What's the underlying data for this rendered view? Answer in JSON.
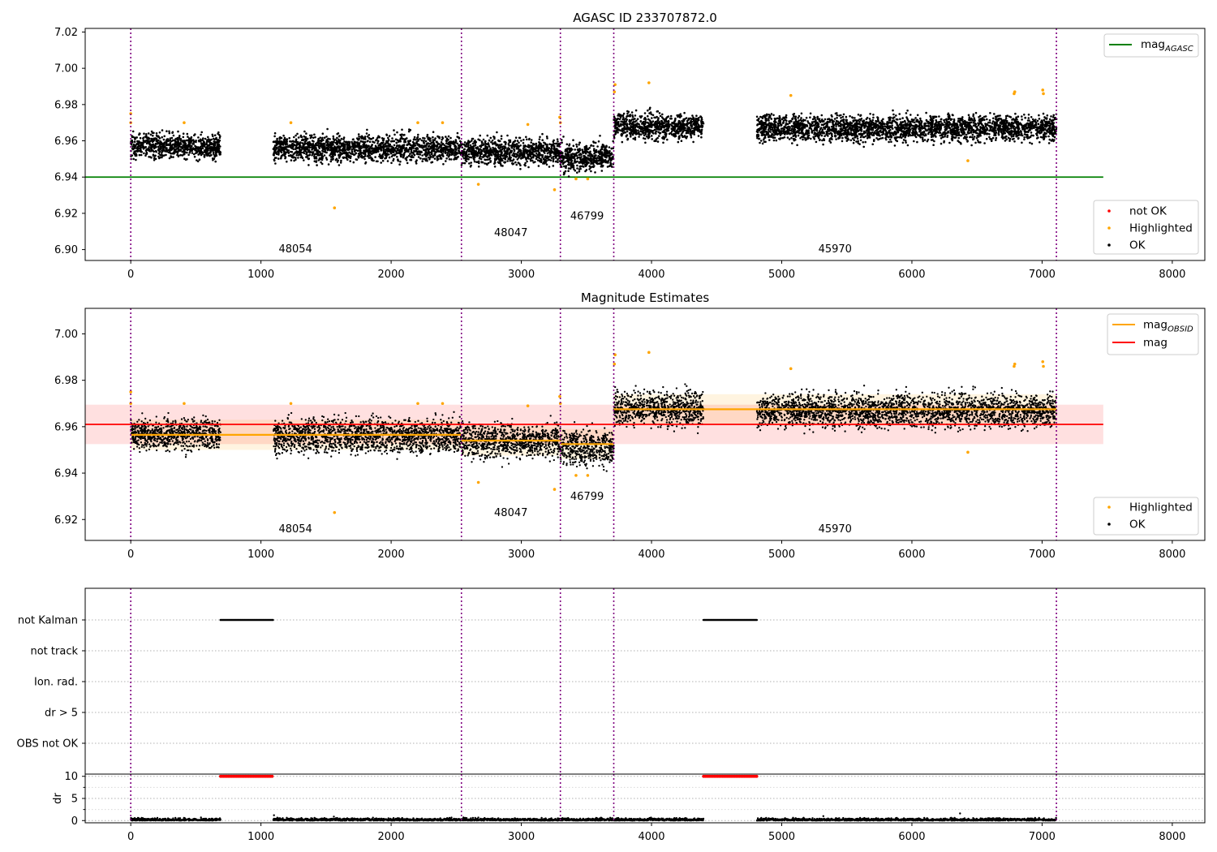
{
  "chart_data": [
    {
      "type": "scatter",
      "title": "AGASC ID 233707872.0",
      "xlim": [
        -350,
        8250
      ],
      "ylim": [
        6.894,
        7.022
      ],
      "xticks": [
        0,
        1000,
        2000,
        3000,
        4000,
        5000,
        6000,
        7000,
        8000
      ],
      "yticks": [
        6.9,
        6.92,
        6.94,
        6.96,
        6.98,
        7.0,
        7.02
      ],
      "ytick_labels": [
        "6.90",
        "6.92",
        "6.94",
        "6.96",
        "6.98",
        "7.00",
        "7.02"
      ],
      "legend_lines": [
        {
          "label": "mag",
          "subscript": "AGASC",
          "color": "#008000"
        }
      ],
      "legend_points": [
        {
          "label": "not OK",
          "color": "#ff0000"
        },
        {
          "label": "Highlighted",
          "color": "#ffa500"
        },
        {
          "label": "OK",
          "color": "#000000"
        }
      ],
      "lines": [
        {
          "name": "mag_AGASC",
          "y": 6.94,
          "x_range": [
            -350,
            7470
          ],
          "color": "#008000"
        }
      ],
      "ok_segments": [
        {
          "x": [
            0,
            690
          ],
          "center": 6.957,
          "spread": 0.006
        },
        {
          "x": [
            1095,
            2540
          ],
          "center": 6.956,
          "spread": 0.0065
        },
        {
          "x": [
            2540,
            3300
          ],
          "center": 6.954,
          "spread": 0.0065
        },
        {
          "x": [
            3300,
            3710
          ],
          "center": 6.951,
          "spread": 0.007
        },
        {
          "x": [
            3710,
            4400
          ],
          "center": 6.968,
          "spread": 0.0065
        },
        {
          "x": [
            4810,
            7110
          ],
          "center": 6.967,
          "spread": 0.0065
        }
      ],
      "highlighted_points": [
        [
          0,
          6.97
        ],
        [
          0,
          6.975
        ],
        [
          410,
          6.97
        ],
        [
          1230,
          6.97
        ],
        [
          1565,
          6.923
        ],
        [
          2205,
          6.97
        ],
        [
          2395,
          6.97
        ],
        [
          2670,
          6.936
        ],
        [
          3050,
          6.969
        ],
        [
          3255,
          6.933
        ],
        [
          3295,
          6.973
        ],
        [
          3300,
          6.97
        ],
        [
          3420,
          6.939
        ],
        [
          3510,
          6.939
        ],
        [
          3715,
          6.987
        ],
        [
          3720,
          6.991
        ],
        [
          3980,
          6.992
        ],
        [
          5070,
          6.985
        ],
        [
          6430,
          6.949
        ],
        [
          6785,
          6.986
        ],
        [
          6790,
          6.987
        ],
        [
          7005,
          6.988
        ],
        [
          7010,
          6.986
        ]
      ],
      "obsid_boundaries": [
        0,
        2540,
        3300,
        3710,
        7110
      ],
      "obsid_labels": [
        {
          "text": "48054",
          "x": 1265,
          "y": 6.8985
        },
        {
          "text": "48047",
          "x": 2920,
          "y": 6.9075
        },
        {
          "text": "46799",
          "x": 3505,
          "y": 6.9165
        },
        {
          "text": "45970",
          "x": 5410,
          "y": 6.8985
        }
      ]
    },
    {
      "type": "scatter",
      "title": "Magnitude Estimates",
      "xlim": [
        -350,
        8250
      ],
      "ylim": [
        6.911,
        7.011
      ],
      "xticks": [
        0,
        1000,
        2000,
        3000,
        4000,
        5000,
        6000,
        7000,
        8000
      ],
      "yticks": [
        6.92,
        6.94,
        6.96,
        6.98,
        7.0
      ],
      "ytick_labels": [
        "6.92",
        "6.94",
        "6.96",
        "6.98",
        "7.00"
      ],
      "legend_lines": [
        {
          "label": "mag",
          "subscript": "OBSID",
          "color": "#ffa500"
        },
        {
          "label": "mag",
          "subscript": "",
          "color": "#ff0000"
        }
      ],
      "legend_points": [
        {
          "label": "Highlighted",
          "color": "#ffa500"
        },
        {
          "label": "OK",
          "color": "#000000"
        }
      ],
      "mag": {
        "value": 6.961,
        "band": [
          6.9525,
          6.9695
        ],
        "x_range": [
          -350,
          7470
        ],
        "color": "#ff0000"
      },
      "mag_obsid": [
        {
          "x": [
            0,
            2540
          ],
          "y": 6.9565
        },
        {
          "x": [
            2540,
            3300
          ],
          "y": 6.954
        },
        {
          "x": [
            3300,
            3710
          ],
          "y": 6.9525
        },
        {
          "x": [
            3710,
            7110
          ],
          "y": 6.9675
        }
      ],
      "obsid_boundaries": [
        0,
        2540,
        3300,
        3710,
        7110
      ],
      "obsid_labels": [
        {
          "text": "48054",
          "x": 1265,
          "y": 6.9145
        },
        {
          "text": "48047",
          "x": 2920,
          "y": 6.9215
        },
        {
          "text": "46799",
          "x": 3505,
          "y": 6.9285
        },
        {
          "text": "45970",
          "x": 5410,
          "y": 6.9145
        }
      ]
    },
    {
      "type": "scatter",
      "title": "",
      "categories": [
        "not Kalman",
        "not track",
        "Ion. rad.",
        "dr > 5",
        "OBS not OK"
      ],
      "not_kalman_ranges": [
        [
          690,
          1095
        ],
        [
          4400,
          4810
        ]
      ],
      "obsid_boundaries": [
        0,
        2540,
        3300,
        3710,
        7110
      ],
      "xlim": [
        -350,
        8250
      ]
    },
    {
      "type": "scatter",
      "title": "",
      "ylabel": "dr",
      "xlim": [
        -350,
        8250
      ],
      "ylim": [
        -0.5,
        10.5
      ],
      "yticks": [
        0,
        5,
        10
      ],
      "ytick_labels": [
        "0",
        "5",
        "10"
      ],
      "xticks": [
        0,
        1000,
        2000,
        3000,
        4000,
        5000,
        6000,
        7000,
        8000
      ],
      "not_ok_ranges": [
        [
          690,
          1095
        ],
        [
          4400,
          4810
        ]
      ],
      "not_ok_value": 10,
      "obsid_boundaries": [
        0,
        2540,
        3300,
        3710,
        7110
      ]
    }
  ]
}
